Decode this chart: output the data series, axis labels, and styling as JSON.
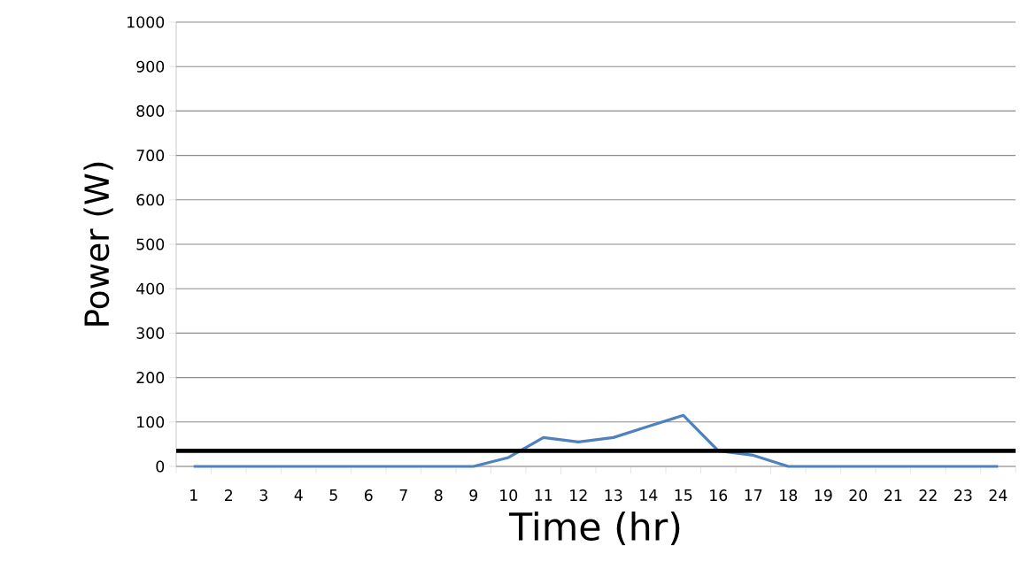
{
  "chart_data": {
    "type": "line",
    "xlabel": "Time (hr)",
    "ylabel": "Power (W)",
    "categories": [
      "1",
      "2",
      "3",
      "4",
      "5",
      "6",
      "7",
      "8",
      "9",
      "10",
      "11",
      "12",
      "13",
      "14",
      "15",
      "16",
      "17",
      "18",
      "19",
      "20",
      "21",
      "22",
      "23",
      "24"
    ],
    "series": [
      {
        "color": "#4f81bd",
        "values": [
          0,
          0,
          0,
          0,
          0,
          0,
          0,
          0,
          0,
          20,
          65,
          55,
          65,
          90,
          115,
          35,
          25,
          0,
          0,
          0,
          0,
          0,
          0,
          0
        ]
      }
    ],
    "ylim": [
      0,
      1000
    ],
    "yticks": [
      0,
      100,
      200,
      300,
      400,
      500,
      600,
      700,
      800,
      900,
      1000
    ],
    "grid": "y",
    "marker": "none",
    "line_style": "solid",
    "ref_lines": [
      {
        "axis": "y",
        "value": 35,
        "color": "#000000"
      }
    ]
  }
}
